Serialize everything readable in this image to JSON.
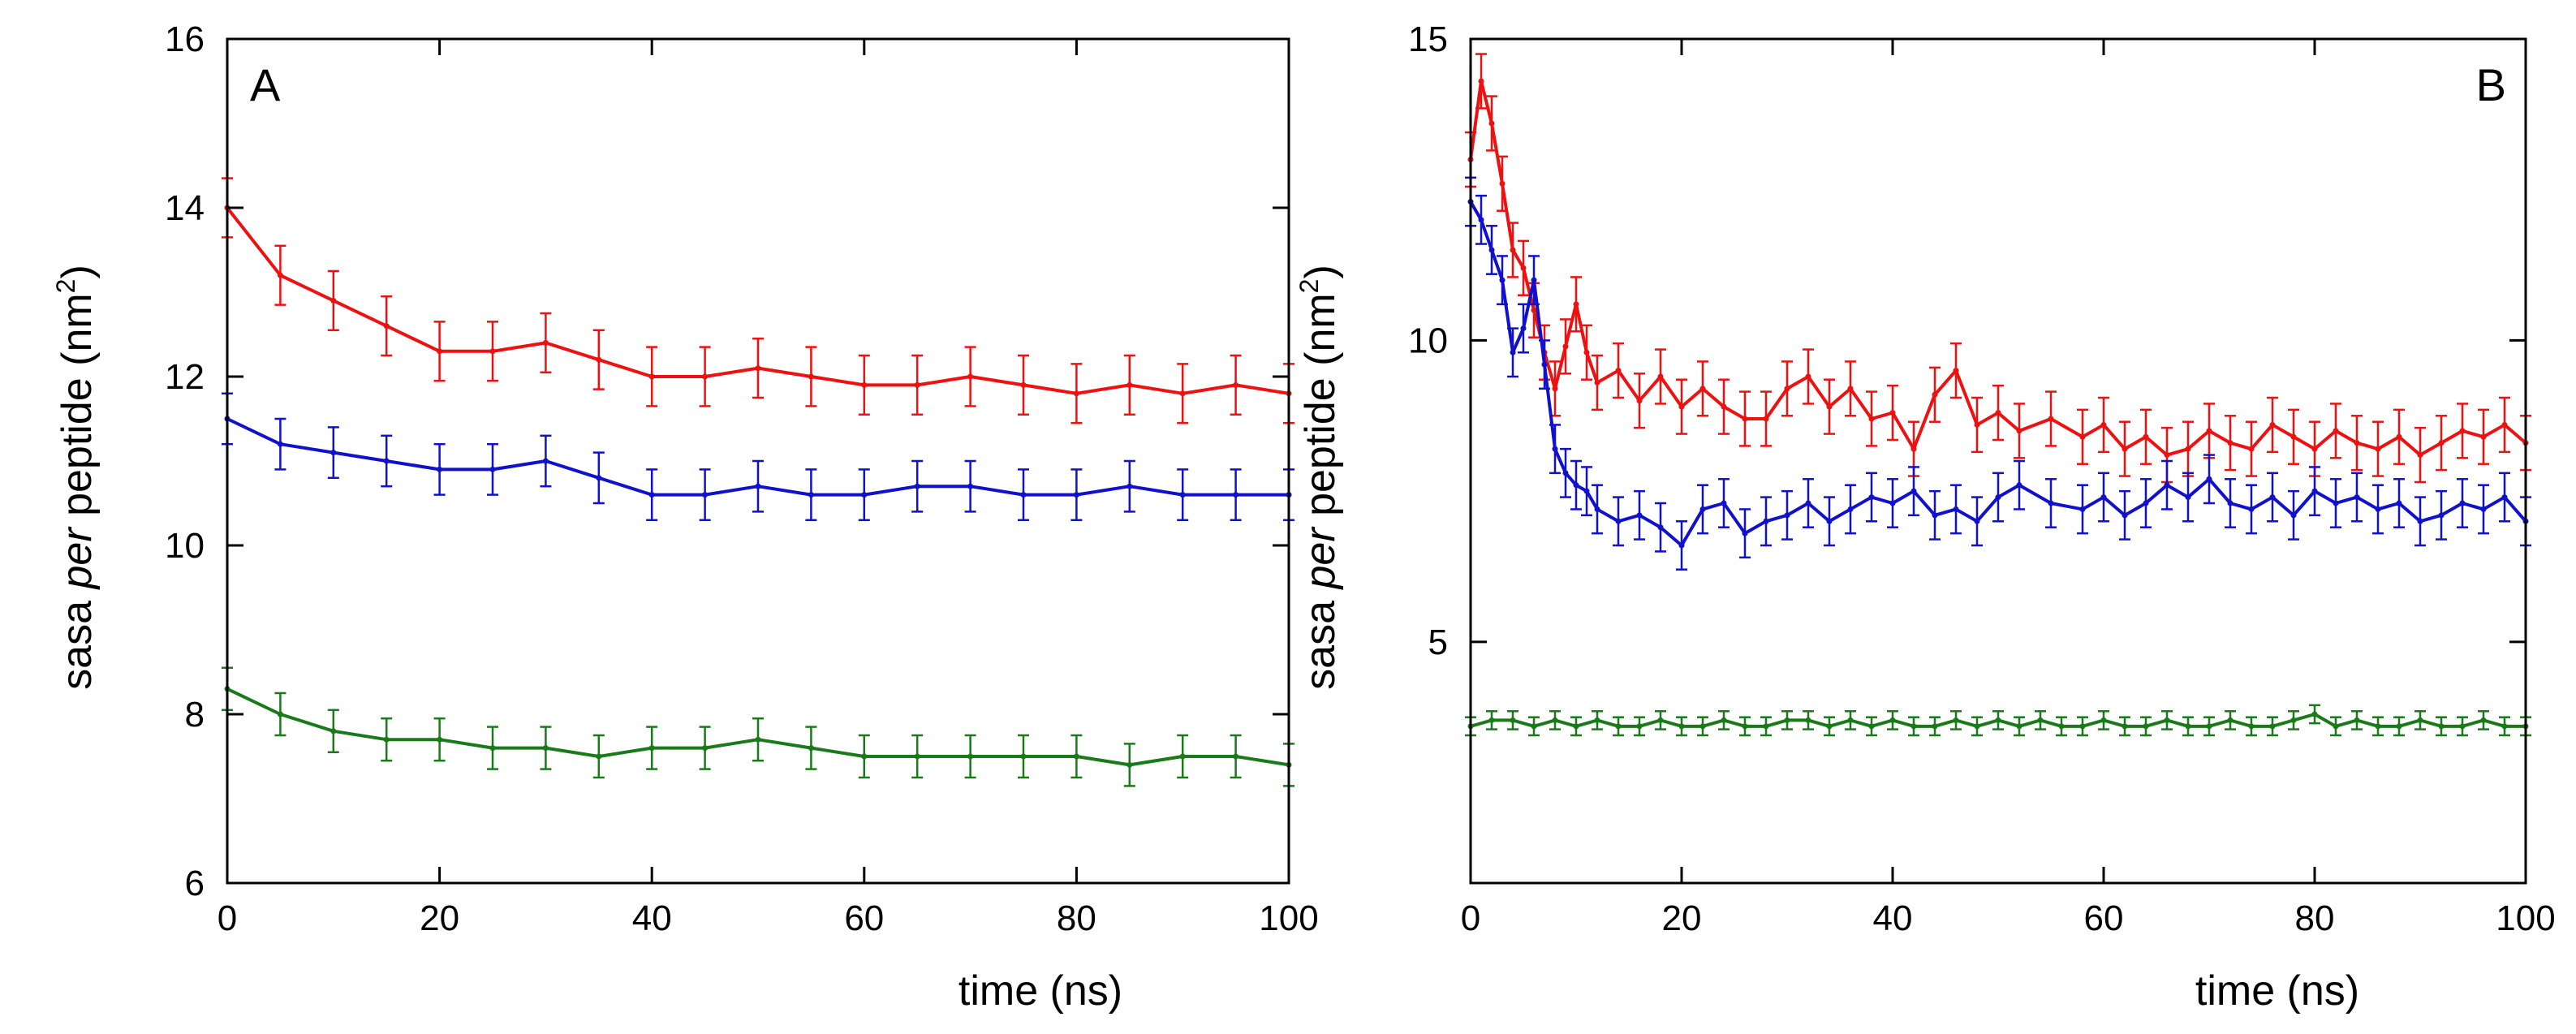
{
  "chart_data": [
    {
      "type": "line",
      "panel_label": "A",
      "xlabel": "time (ns)",
      "ylabel": {
        "prefix": "sasa ",
        "italic": "per",
        "suffix": " peptide (nm",
        "sup": "2",
        "close": ")"
      },
      "xlim": [
        0,
        100
      ],
      "ylim": [
        6,
        16
      ],
      "xticks": [
        0,
        20,
        40,
        60,
        80,
        100
      ],
      "xtick_labels": [
        "0",
        "20",
        "40",
        "60",
        "80",
        "100"
      ],
      "yticks": [
        6,
        8,
        10,
        12,
        14,
        16
      ],
      "ytick_labels": [
        "6",
        "8",
        "10",
        "12",
        "14",
        "16"
      ],
      "grid": false,
      "error_bars": true,
      "series": [
        {
          "name": "red",
          "color": "#ee1111",
          "x": [
            0,
            5,
            10,
            15,
            20,
            25,
            30,
            35,
            40,
            45,
            50,
            55,
            60,
            65,
            70,
            75,
            80,
            85,
            90,
            95,
            100
          ],
          "y": [
            14.0,
            13.2,
            12.9,
            12.6,
            12.3,
            12.3,
            12.4,
            12.2,
            12.0,
            12.0,
            12.1,
            12.0,
            11.9,
            11.9,
            12.0,
            11.9,
            11.8,
            11.9,
            11.8,
            11.9,
            11.8
          ],
          "err": 0.35
        },
        {
          "name": "blue",
          "color": "#1111cc",
          "x": [
            0,
            5,
            10,
            15,
            20,
            25,
            30,
            35,
            40,
            45,
            50,
            55,
            60,
            65,
            70,
            75,
            80,
            85,
            90,
            95,
            100
          ],
          "y": [
            11.5,
            11.2,
            11.1,
            11.0,
            10.9,
            10.9,
            11.0,
            10.8,
            10.6,
            10.6,
            10.7,
            10.6,
            10.6,
            10.7,
            10.7,
            10.6,
            10.6,
            10.7,
            10.6,
            10.6,
            10.6
          ],
          "err": 0.3
        },
        {
          "name": "green",
          "color": "#1a7a1a",
          "x": [
            0,
            5,
            10,
            15,
            20,
            25,
            30,
            35,
            40,
            45,
            50,
            55,
            60,
            65,
            70,
            75,
            80,
            85,
            90,
            95,
            100
          ],
          "y": [
            8.3,
            8.0,
            7.8,
            7.7,
            7.7,
            7.6,
            7.6,
            7.5,
            7.6,
            7.6,
            7.7,
            7.6,
            7.5,
            7.5,
            7.5,
            7.5,
            7.5,
            7.4,
            7.5,
            7.5,
            7.4
          ],
          "err": 0.25
        }
      ]
    },
    {
      "type": "line",
      "panel_label": "B",
      "xlabel": "time (ns)",
      "ylabel": {
        "prefix": "sasa ",
        "italic": "per",
        "suffix": " peptide (nm",
        "sup": "2",
        "close": ")"
      },
      "xlim": [
        0,
        100
      ],
      "ylim": [
        1,
        15
      ],
      "xticks": [
        0,
        20,
        40,
        60,
        80,
        100
      ],
      "xtick_labels": [
        "0",
        "20",
        "40",
        "60",
        "80",
        "100"
      ],
      "yticks": [
        5,
        10,
        15
      ],
      "ytick_labels": [
        "5",
        "10",
        "15"
      ],
      "grid": false,
      "error_bars": true,
      "series": [
        {
          "name": "red",
          "color": "#ee1111",
          "x": [
            0,
            1,
            2,
            3,
            4,
            5,
            6,
            7,
            8,
            9,
            10,
            11,
            12,
            14,
            16,
            18,
            20,
            22,
            24,
            26,
            28,
            30,
            32,
            34,
            36,
            38,
            40,
            42,
            44,
            46,
            48,
            50,
            52,
            55,
            58,
            60,
            62,
            64,
            66,
            68,
            70,
            72,
            74,
            76,
            78,
            80,
            82,
            84,
            86,
            88,
            90,
            92,
            94,
            96,
            98,
            100
          ],
          "y": [
            13.0,
            14.3,
            13.6,
            12.6,
            11.5,
            11.2,
            10.5,
            9.8,
            9.2,
            9.9,
            10.6,
            9.8,
            9.3,
            9.5,
            9.0,
            9.4,
            8.9,
            9.2,
            8.9,
            8.7,
            8.7,
            9.2,
            9.4,
            8.9,
            9.2,
            8.7,
            8.8,
            8.2,
            9.1,
            9.5,
            8.6,
            8.8,
            8.5,
            8.7,
            8.4,
            8.6,
            8.2,
            8.4,
            8.1,
            8.2,
            8.5,
            8.3,
            8.2,
            8.6,
            8.4,
            8.2,
            8.5,
            8.3,
            8.2,
            8.4,
            8.1,
            8.3,
            8.5,
            8.4,
            8.6,
            8.3
          ],
          "err": 0.45
        },
        {
          "name": "blue",
          "color": "#1111cc",
          "x": [
            0,
            1,
            2,
            3,
            4,
            5,
            6,
            7,
            8,
            9,
            10,
            11,
            12,
            14,
            16,
            18,
            20,
            22,
            24,
            26,
            28,
            30,
            32,
            34,
            36,
            38,
            40,
            42,
            44,
            46,
            48,
            50,
            52,
            55,
            58,
            60,
            62,
            64,
            66,
            68,
            70,
            72,
            74,
            76,
            78,
            80,
            82,
            84,
            86,
            88,
            90,
            92,
            94,
            96,
            98,
            100
          ],
          "y": [
            12.3,
            12.0,
            11.5,
            11.0,
            9.8,
            10.2,
            11.0,
            9.6,
            8.2,
            7.8,
            7.6,
            7.5,
            7.2,
            7.0,
            7.1,
            6.9,
            6.6,
            7.2,
            7.3,
            6.8,
            7.0,
            7.1,
            7.3,
            7.0,
            7.2,
            7.4,
            7.3,
            7.5,
            7.1,
            7.2,
            7.0,
            7.4,
            7.6,
            7.3,
            7.2,
            7.4,
            7.1,
            7.3,
            7.6,
            7.4,
            7.7,
            7.3,
            7.2,
            7.4,
            7.1,
            7.5,
            7.3,
            7.4,
            7.2,
            7.3,
            7.0,
            7.1,
            7.3,
            7.2,
            7.4,
            7.0
          ],
          "err": 0.4
        },
        {
          "name": "green",
          "color": "#1a7a1a",
          "x": [
            0,
            2,
            4,
            6,
            8,
            10,
            12,
            14,
            16,
            18,
            20,
            22,
            24,
            26,
            28,
            30,
            32,
            34,
            36,
            38,
            40,
            42,
            44,
            46,
            48,
            50,
            52,
            54,
            56,
            58,
            60,
            62,
            64,
            66,
            68,
            70,
            72,
            74,
            76,
            78,
            80,
            82,
            84,
            86,
            88,
            90,
            92,
            94,
            96,
            98,
            100
          ],
          "y": [
            3.6,
            3.7,
            3.7,
            3.6,
            3.7,
            3.6,
            3.7,
            3.6,
            3.6,
            3.7,
            3.6,
            3.6,
            3.7,
            3.6,
            3.6,
            3.7,
            3.7,
            3.6,
            3.7,
            3.6,
            3.7,
            3.6,
            3.6,
            3.7,
            3.6,
            3.7,
            3.6,
            3.7,
            3.6,
            3.6,
            3.7,
            3.6,
            3.6,
            3.7,
            3.6,
            3.6,
            3.7,
            3.6,
            3.6,
            3.7,
            3.8,
            3.6,
            3.7,
            3.6,
            3.6,
            3.7,
            3.6,
            3.6,
            3.7,
            3.6,
            3.6
          ],
          "err": 0.15
        }
      ]
    }
  ]
}
